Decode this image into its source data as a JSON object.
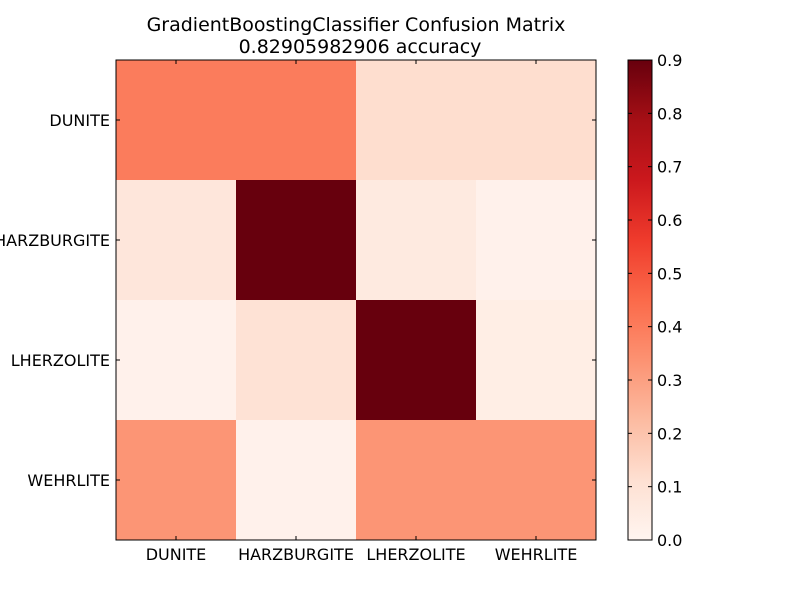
{
  "chart_data": {
    "type": "heatmap",
    "title": "GradientBoostingClassifier Confusion Matrix",
    "subtitle": "0.82905982906 accuracy",
    "x_categories": [
      "DUNITE",
      "HARZBURGITE",
      "LHERZOLITE",
      "WEHRLITE"
    ],
    "y_categories": [
      "DUNITE",
      "HARZBURGITE",
      "LHERZOLITE",
      "WEHRLITE"
    ],
    "values": [
      [
        0.4,
        0.4,
        0.12,
        0.12
      ],
      [
        0.08,
        0.9,
        0.06,
        0.02
      ],
      [
        0.02,
        0.1,
        0.9,
        0.04
      ],
      [
        0.33,
        0.02,
        0.33,
        0.33
      ]
    ],
    "colormap": "Reds",
    "colorbar": {
      "range": [
        0.0,
        0.9
      ],
      "ticks": [
        "0.0",
        "0.1",
        "0.2",
        "0.3",
        "0.4",
        "0.5",
        "0.6",
        "0.7",
        "0.8",
        "0.9"
      ]
    },
    "colors": {
      "min": "#fff5f0",
      "max": "#67000d"
    }
  }
}
